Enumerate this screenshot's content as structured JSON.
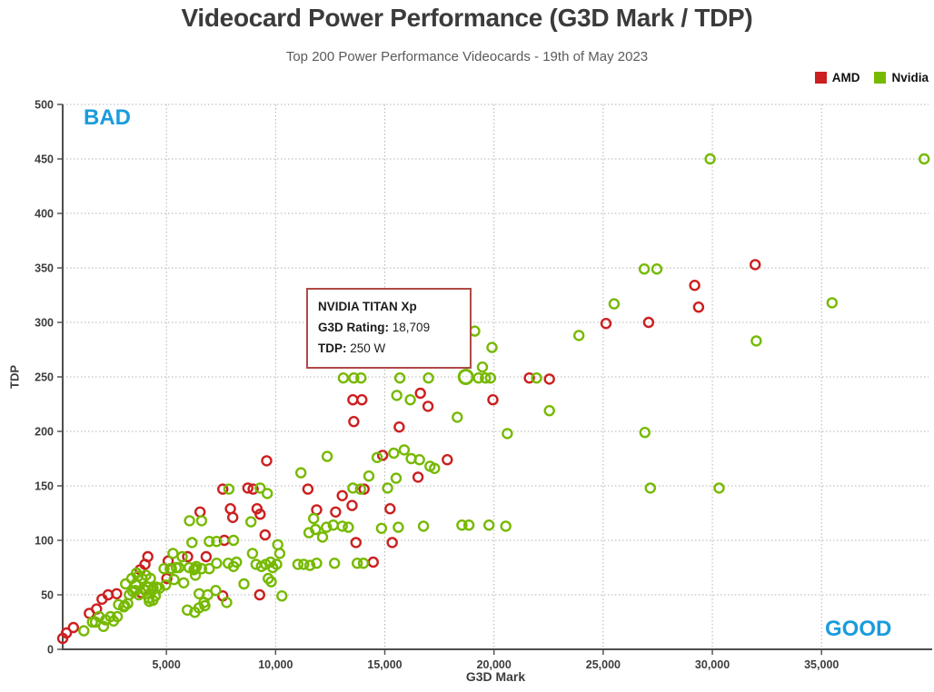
{
  "title": "Videocard Power Performance (G3D Mark / TDP)",
  "subtitle": "Top 200 Power Performance Videocards - 19th of May 2023",
  "legend": [
    {
      "label": "AMD",
      "color": "#cc1f1f"
    },
    {
      "label": "Nvidia",
      "color": "#76b900"
    }
  ],
  "annotations": {
    "bad": "BAD",
    "good": "GOOD",
    "color": "#1a9cdc"
  },
  "tooltip": {
    "title": "NVIDIA TITAN Xp",
    "line1_label": "G3D Rating:",
    "line1_value": "18,709",
    "line2_label": "TDP:",
    "line2_value": "250 W",
    "border_color": "#ae4a47"
  },
  "chart_data": {
    "type": "scatter",
    "title": "Videocard Power Performance (G3D Mark / TDP)",
    "xlabel": "G3D Mark",
    "ylabel": "TDP",
    "xlim": [
      250,
      39900
    ],
    "ylim": [
      0,
      500
    ],
    "grid": true,
    "legend_position": "top-right",
    "x_ticks": [
      5000,
      10000,
      15000,
      20000,
      25000,
      30000,
      35000
    ],
    "x_tick_labels": [
      "5,000",
      "10,000",
      "15,000",
      "20,000",
      "25,000",
      "30,000",
      "35,000"
    ],
    "y_ticks": [
      0,
      50,
      100,
      150,
      200,
      250,
      300,
      350,
      400,
      450,
      500
    ],
    "highlight": {
      "series": "Nvidia",
      "g3d": 18709,
      "tdp": 250
    },
    "series": [
      {
        "name": "AMD",
        "color": "#cc1f1f",
        "points": [
          [
            250,
            10
          ],
          [
            420,
            15
          ],
          [
            740,
            20
          ],
          [
            1470,
            33
          ],
          [
            1800,
            37
          ],
          [
            2050,
            46
          ],
          [
            2330,
            50
          ],
          [
            2720,
            51
          ],
          [
            3800,
            73
          ],
          [
            3840,
            52
          ],
          [
            4020,
            78
          ],
          [
            4150,
            85
          ],
          [
            5020,
            65
          ],
          [
            5080,
            81
          ],
          [
            5970,
            85
          ],
          [
            6540,
            126
          ],
          [
            6820,
            85
          ],
          [
            7580,
            49
          ],
          [
            7580,
            147
          ],
          [
            7650,
            100
          ],
          [
            7930,
            129
          ],
          [
            8040,
            121
          ],
          [
            8730,
            148
          ],
          [
            8970,
            147
          ],
          [
            9150,
            129
          ],
          [
            9270,
            50
          ],
          [
            9290,
            124
          ],
          [
            9520,
            105
          ],
          [
            9590,
            173
          ],
          [
            11480,
            147
          ],
          [
            11880,
            128
          ],
          [
            12750,
            126
          ],
          [
            13050,
            141
          ],
          [
            13500,
            132
          ],
          [
            13540,
            229
          ],
          [
            13580,
            209
          ],
          [
            13680,
            98
          ],
          [
            13950,
            229
          ],
          [
            14050,
            147
          ],
          [
            14470,
            80
          ],
          [
            14900,
            178
          ],
          [
            15240,
            129
          ],
          [
            15340,
            98
          ],
          [
            15660,
            204
          ],
          [
            16520,
            158
          ],
          [
            16630,
            235
          ],
          [
            16980,
            223
          ],
          [
            17860,
            174
          ],
          [
            19950,
            229
          ],
          [
            21620,
            249
          ],
          [
            22540,
            248
          ],
          [
            25130,
            299
          ],
          [
            27080,
            300
          ],
          [
            29190,
            334
          ],
          [
            29370,
            314
          ],
          [
            31960,
            353
          ]
        ]
      },
      {
        "name": "Nvidia",
        "color": "#76b900",
        "points": [
          [
            1220,
            17
          ],
          [
            1610,
            25
          ],
          [
            1750,
            25
          ],
          [
            1920,
            30
          ],
          [
            2120,
            21
          ],
          [
            2220,
            27
          ],
          [
            2440,
            30
          ],
          [
            2580,
            26
          ],
          [
            2750,
            30
          ],
          [
            2810,
            41
          ],
          [
            3050,
            39
          ],
          [
            3090,
            40
          ],
          [
            3130,
            60
          ],
          [
            3230,
            42
          ],
          [
            3300,
            50
          ],
          [
            3410,
            65
          ],
          [
            3460,
            53
          ],
          [
            3580,
            54
          ],
          [
            3600,
            60
          ],
          [
            3630,
            70
          ],
          [
            3700,
            67
          ],
          [
            3740,
            50
          ],
          [
            3880,
            65
          ],
          [
            3970,
            55
          ],
          [
            4050,
            54
          ],
          [
            4060,
            68
          ],
          [
            4160,
            57
          ],
          [
            4200,
            47
          ],
          [
            4220,
            44
          ],
          [
            4270,
            65
          ],
          [
            4340,
            54
          ],
          [
            4380,
            45
          ],
          [
            4390,
            56
          ],
          [
            4490,
            49
          ],
          [
            4550,
            57
          ],
          [
            4680,
            56
          ],
          [
            4890,
            74
          ],
          [
            4960,
            59
          ],
          [
            5170,
            74
          ],
          [
            5230,
            74
          ],
          [
            5300,
            88
          ],
          [
            5350,
            64
          ],
          [
            5450,
            75
          ],
          [
            5570,
            75
          ],
          [
            5720,
            85
          ],
          [
            5790,
            61
          ],
          [
            5960,
            36
          ],
          [
            6040,
            75
          ],
          [
            6060,
            118
          ],
          [
            6170,
            98
          ],
          [
            6260,
            73
          ],
          [
            6300,
            34
          ],
          [
            6320,
            74
          ],
          [
            6330,
            68
          ],
          [
            6375,
            76
          ],
          [
            6490,
            38
          ],
          [
            6500,
            51
          ],
          [
            6610,
            74
          ],
          [
            6610,
            118
          ],
          [
            6720,
            43
          ],
          [
            6760,
            40
          ],
          [
            6890,
            50
          ],
          [
            6960,
            74
          ],
          [
            6960,
            99
          ],
          [
            7260,
            54
          ],
          [
            7300,
            79
          ],
          [
            7300,
            99
          ],
          [
            7760,
            43
          ],
          [
            7830,
            79
          ],
          [
            7860,
            147
          ],
          [
            8070,
            76
          ],
          [
            8070,
            100
          ],
          [
            8210,
            80
          ],
          [
            8550,
            60
          ],
          [
            8870,
            117
          ],
          [
            8940,
            88
          ],
          [
            9105,
            78
          ],
          [
            9290,
            148
          ],
          [
            9350,
            76
          ],
          [
            9550,
            78
          ],
          [
            9620,
            143
          ],
          [
            9660,
            65
          ],
          [
            9770,
            80
          ],
          [
            9800,
            62
          ],
          [
            9870,
            75
          ],
          [
            10050,
            78
          ],
          [
            10100,
            96
          ],
          [
            10190,
            88
          ],
          [
            10290,
            49
          ],
          [
            11020,
            78
          ],
          [
            11160,
            162
          ],
          [
            11290,
            78
          ],
          [
            11530,
            107
          ],
          [
            11570,
            77
          ],
          [
            11740,
            120
          ],
          [
            11830,
            110
          ],
          [
            11880,
            79
          ],
          [
            12150,
            103
          ],
          [
            12330,
            112
          ],
          [
            12360,
            177
          ],
          [
            12640,
            114
          ],
          [
            12700,
            79
          ],
          [
            13050,
            113
          ],
          [
            13100,
            249
          ],
          [
            13330,
            112
          ],
          [
            13540,
            148
          ],
          [
            13580,
            249
          ],
          [
            13740,
            79
          ],
          [
            13890,
            147
          ],
          [
            13910,
            249
          ],
          [
            14020,
            79
          ],
          [
            14270,
            159
          ],
          [
            14650,
            176
          ],
          [
            14850,
            111
          ],
          [
            15130,
            148
          ],
          [
            15410,
            180
          ],
          [
            15520,
            157
          ],
          [
            15550,
            233
          ],
          [
            15620,
            112
          ],
          [
            15690,
            249
          ],
          [
            15890,
            183
          ],
          [
            16170,
            229
          ],
          [
            16210,
            175
          ],
          [
            16590,
            174
          ],
          [
            16770,
            113
          ],
          [
            17000,
            249
          ],
          [
            17070,
            168
          ],
          [
            17280,
            166
          ],
          [
            18320,
            213
          ],
          [
            18530,
            114
          ],
          [
            18709,
            250
          ],
          [
            18850,
            114
          ],
          [
            19120,
            292
          ],
          [
            19290,
            249
          ],
          [
            19470,
            259
          ],
          [
            19610,
            249
          ],
          [
            19770,
            114
          ],
          [
            19840,
            249
          ],
          [
            19910,
            277
          ],
          [
            20540,
            113
          ],
          [
            20610,
            198
          ],
          [
            21950,
            249
          ],
          [
            22540,
            219
          ],
          [
            23890,
            288
          ],
          [
            25500,
            317
          ],
          [
            26880,
            349
          ],
          [
            26910,
            199
          ],
          [
            27160,
            148
          ],
          [
            27460,
            349
          ],
          [
            29900,
            450
          ],
          [
            30310,
            148
          ],
          [
            32010,
            283
          ],
          [
            35480,
            318
          ],
          [
            39700,
            450
          ]
        ]
      }
    ]
  }
}
